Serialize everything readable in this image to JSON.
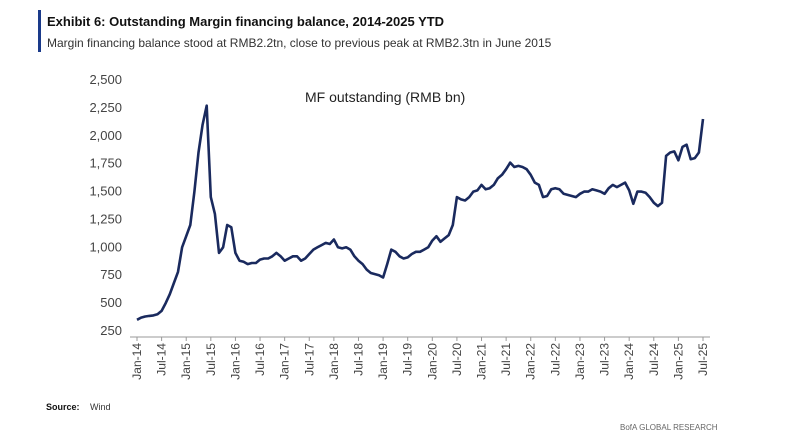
{
  "chart_data": {
    "type": "line",
    "title": "Exhibit 6: Outstanding Margin financing balance, 2014-2025 YTD",
    "subtitle": "Margin financing balance stood at RMB2.2tn, close to previous peak at RMB2.3tn in June 2015",
    "series_label": "MF outstanding (RMB bn)",
    "source_label": "Source:",
    "source": "Wind",
    "footer": "BofA GLOBAL RESEARCH",
    "color": "#1a2a5e",
    "categories": [
      "Jan-14",
      null,
      null,
      null,
      null,
      null,
      "Jul-14",
      null,
      null,
      null,
      null,
      null,
      "Jan-15",
      null,
      null,
      null,
      null,
      null,
      "Jul-15",
      null,
      null,
      null,
      null,
      null,
      "Jan-16",
      null,
      null,
      null,
      null,
      null,
      "Jul-16",
      null,
      null,
      null,
      null,
      null,
      "Jan-17",
      null,
      null,
      null,
      null,
      null,
      "Jul-17",
      null,
      null,
      null,
      null,
      null,
      "Jan-18",
      null,
      null,
      null,
      null,
      null,
      "Jul-18",
      null,
      null,
      null,
      null,
      null,
      "Jan-19",
      null,
      null,
      null,
      null,
      null,
      "Jul-19",
      null,
      null,
      null,
      null,
      null,
      "Jan-20",
      null,
      null,
      null,
      null,
      null,
      "Jul-20",
      null,
      null,
      null,
      null,
      null,
      "Jan-21",
      null,
      null,
      null,
      null,
      null,
      "Jul-21",
      null,
      null,
      null,
      null,
      null,
      "Jan-22",
      null,
      null,
      null,
      null,
      null,
      "Jul-22",
      null,
      null,
      null,
      null,
      null,
      "Jan-23",
      null,
      null,
      null,
      null,
      null,
      "Jul-23",
      null,
      null,
      null,
      null,
      null,
      "Jan-24",
      null,
      null,
      null,
      null,
      null,
      "Jul-24",
      null,
      null,
      null,
      null,
      null,
      "Jan-25",
      null,
      null,
      null,
      null,
      null,
      "Jul-25"
    ],
    "values": [
      350,
      370,
      380,
      385,
      390,
      400,
      430,
      500,
      580,
      680,
      780,
      1000,
      1100,
      1200,
      1500,
      1850,
      2100,
      2270,
      1450,
      1300,
      950,
      1000,
      1200,
      1180,
      950,
      880,
      870,
      850,
      860,
      860,
      890,
      900,
      900,
      920,
      950,
      920,
      880,
      900,
      920,
      920,
      880,
      900,
      940,
      980,
      1000,
      1020,
      1040,
      1030,
      1070,
      1000,
      990,
      1000,
      980,
      920,
      880,
      850,
      800,
      770,
      760,
      750,
      730,
      850,
      980,
      960,
      920,
      900,
      910,
      940,
      960,
      960,
      980,
      1000,
      1060,
      1100,
      1050,
      1080,
      1110,
      1200,
      1450,
      1430,
      1420,
      1450,
      1500,
      1510,
      1560,
      1520,
      1530,
      1560,
      1620,
      1650,
      1700,
      1760,
      1720,
      1730,
      1720,
      1700,
      1650,
      1580,
      1560,
      1450,
      1460,
      1520,
      1530,
      1520,
      1480,
      1470,
      1460,
      1450,
      1480,
      1500,
      1500,
      1520,
      1510,
      1500,
      1480,
      1530,
      1560,
      1540,
      1560,
      1580,
      1510,
      1390,
      1500,
      1500,
      1490,
      1450,
      1400,
      1370,
      1400,
      1820,
      1850,
      1860,
      1780,
      1900,
      1920,
      1790,
      1800,
      1850,
      2150
    ],
    "ylim": [
      250,
      2500
    ],
    "yticks": [
      250,
      500,
      750,
      {
        "value": 1000,
        "label": "1,000"
      },
      {
        "value": 1250,
        "label": "1,250"
      },
      {
        "value": 1500,
        "label": "1,500"
      },
      {
        "value": 1750,
        "label": "1,750"
      },
      {
        "value": 2000,
        "label": "2,000"
      },
      {
        "value": 2250,
        "label": "2,250"
      },
      {
        "value": 2500,
        "label": "2,500"
      }
    ]
  }
}
